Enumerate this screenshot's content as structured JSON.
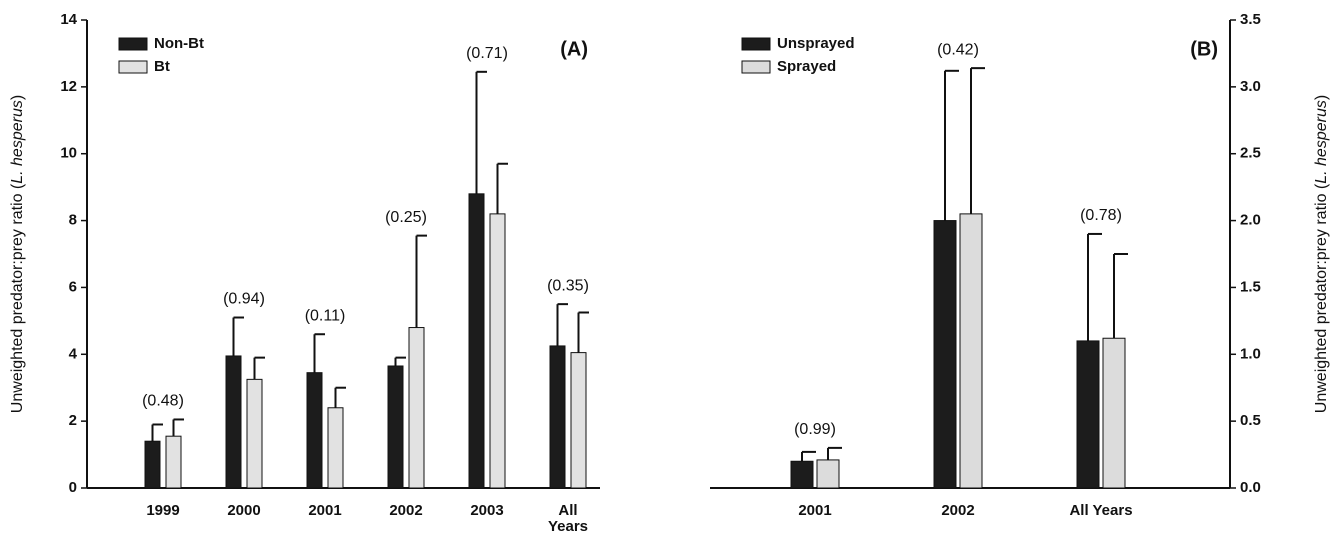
{
  "chart_data": [
    {
      "type": "bar",
      "panel_label": "(A)",
      "y_label": [
        "Unweighted predator:prey ratio (",
        "L. hesperus",
        ")"
      ],
      "categories": [
        "1999",
        "2000",
        "2001",
        "2002",
        "2003",
        "All Years"
      ],
      "wrap_labels": true,
      "series": [
        {
          "name": "Non-Bt",
          "color": "#1c1c1c",
          "values": [
            1.4,
            3.95,
            3.45,
            3.65,
            8.8,
            4.25
          ],
          "errors": [
            0.5,
            1.15,
            1.15,
            0.25,
            3.65,
            1.25
          ]
        },
        {
          "name": "Bt",
          "color": "#e2e2e2",
          "values": [
            1.55,
            3.25,
            2.4,
            4.8,
            8.2,
            4.05
          ],
          "errors": [
            0.5,
            0.65,
            0.6,
            2.75,
            1.5,
            1.2
          ]
        }
      ],
      "annotations": [
        "(0.48)",
        "(0.94)",
        "(0.11)",
        "(0.25)",
        "(0.71)",
        "(0.35)"
      ],
      "ylim": [
        0,
        14
      ],
      "yticks": [
        0,
        2,
        4,
        6,
        8,
        10,
        12,
        14
      ],
      "axis_side": "left",
      "legend": "upper left"
    },
    {
      "type": "bar",
      "panel_label": "(B)",
      "y_label": [
        "Unweighted predator:prey ratio (",
        "L. hesperus",
        ")"
      ],
      "categories": [
        "2001",
        "2002",
        "All Years"
      ],
      "wrap_labels": false,
      "series": [
        {
          "name": "Unsprayed",
          "color": "#1c1c1c",
          "values": [
            0.2,
            2.0,
            1.1
          ],
          "errors": [
            0.07,
            1.12,
            0.8
          ]
        },
        {
          "name": "Sprayed",
          "color": "#dcdcdc",
          "values": [
            0.21,
            2.05,
            1.12
          ],
          "errors": [
            0.09,
            1.09,
            0.63
          ]
        }
      ],
      "annotations": [
        "(0.99)",
        "(0.42)",
        "(0.78)"
      ],
      "ylim": [
        0,
        3.5
      ],
      "yticks": [
        {
          "value": 0,
          "label": "0.0"
        },
        0.5,
        {
          "value": 1,
          "label": "1.0"
        },
        1.5,
        {
          "value": 2,
          "label": "2.0"
        },
        2.5,
        {
          "value": 3,
          "label": "3.0"
        },
        3.5
      ],
      "axis_side": "right",
      "legend": "upper left"
    }
  ]
}
